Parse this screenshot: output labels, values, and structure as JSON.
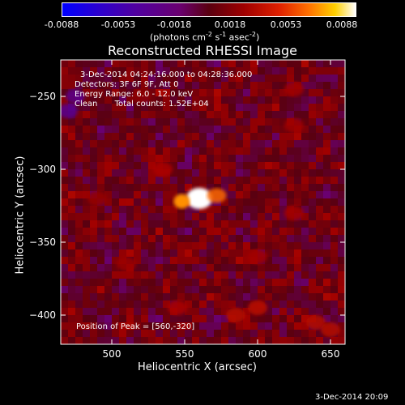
{
  "colorbar": {
    "ticks": [
      "-0.0088",
      "-0.0053",
      "-0.0018",
      "0.0018",
      "0.0053",
      "0.0088"
    ],
    "unit_main": "(photons cm",
    "unit_exp1": "-2",
    "unit_mid1": " s",
    "unit_exp2": "-1",
    "unit_mid2": " asec",
    "unit_exp3": "-2",
    "unit_end": ")"
  },
  "title": "Reconstructed RHESSI Image",
  "info": {
    "time_range": "3-Dec-2014 04:24:16.000 to 04:28:36.000",
    "detectors": "Detectors: 3F 6F 9F, Att 0",
    "energy": "Energy Range: 6.0 - 12.0 keV",
    "clean_label": "Clean",
    "counts": "Total counts: 1.52E+04",
    "peak": "Position of Peak = [560,-320]"
  },
  "footer_date": "3-Dec-2014 20:09",
  "chart_data": {
    "type": "heatmap",
    "title": "Reconstructed RHESSI Image",
    "xlabel": "Heliocentric X (arcsec)",
    "ylabel": "Heliocentric Y (arcsec)",
    "xlim": [
      465,
      660
    ],
    "ylim": [
      -420,
      -225
    ],
    "x_ticks": [
      500,
      550,
      600,
      650
    ],
    "y_ticks": [
      -250,
      -300,
      -350,
      -400
    ],
    "x_tick_labels": [
      "500",
      "550",
      "600",
      "650"
    ],
    "y_tick_labels": [
      "−250",
      "−300",
      "−350",
      "−400"
    ],
    "colorbar_range": [
      -0.0088,
      0.0088
    ],
    "colormap": "blue-purple-red-yellow-white",
    "peak": [
      560,
      -320
    ],
    "sources": [
      {
        "x": 560,
        "y": -320,
        "value": 0.0088
      },
      {
        "x": 548,
        "y": -322,
        "value": 0.0065
      },
      {
        "x": 572,
        "y": -318,
        "value": 0.0058
      },
      {
        "x": 535,
        "y": -300,
        "value": 0.0025
      },
      {
        "x": 600,
        "y": -395,
        "value": 0.003
      },
      {
        "x": 585,
        "y": -400,
        "value": 0.0028
      },
      {
        "x": 545,
        "y": -395,
        "value": 0.0025
      },
      {
        "x": 640,
        "y": -405,
        "value": 0.0028
      },
      {
        "x": 650,
        "y": -410,
        "value": 0.0028
      },
      {
        "x": 625,
        "y": -330,
        "value": 0.0023
      },
      {
        "x": 625,
        "y": -245,
        "value": 0.0022
      },
      {
        "x": 625,
        "y": -270,
        "value": 0.0021
      },
      {
        "x": 510,
        "y": -365,
        "value": 0.002
      },
      {
        "x": 600,
        "y": -360,
        "value": 0.0022
      },
      {
        "x": 490,
        "y": -320,
        "value": 0.0018
      },
      {
        "x": 520,
        "y": -250,
        "value": 0.0016
      },
      {
        "x": 475,
        "y": -250,
        "value": -0.003
      },
      {
        "x": 470,
        "y": -260,
        "value": -0.0035
      }
    ]
  }
}
